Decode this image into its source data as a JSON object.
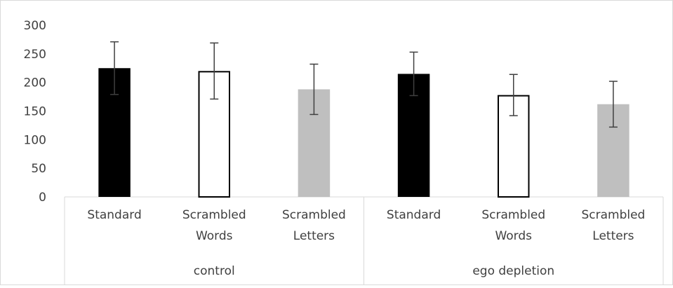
{
  "chart_data": {
    "type": "bar",
    "title": "",
    "xlabel": "",
    "ylabel": "",
    "ylim": [
      0,
      300
    ],
    "yticks": [
      0,
      50,
      100,
      150,
      200,
      250,
      300
    ],
    "grid": false,
    "legend": "none",
    "groups": [
      {
        "name": "control",
        "bars": [
          {
            "category": [
              "Standard"
            ],
            "value": 225,
            "error": 46,
            "style": "solid",
            "color": "#000000"
          },
          {
            "category": [
              "Scrambled",
              "Words"
            ],
            "value": 220,
            "error": 49,
            "style": "outline",
            "color": "#ffffff"
          },
          {
            "category": [
              "Scrambled",
              "Letters"
            ],
            "value": 188,
            "error": 44,
            "style": "solid",
            "color": "#bfbfbf"
          }
        ]
      },
      {
        "name": "ego depletion",
        "bars": [
          {
            "category": [
              "Standard"
            ],
            "value": 215,
            "error": 38,
            "style": "solid",
            "color": "#000000"
          },
          {
            "category": [
              "Scrambled",
              "Words"
            ],
            "value": 178,
            "error": 36,
            "style": "outline",
            "color": "#ffffff"
          },
          {
            "category": [
              "Scrambled",
              "Letters"
            ],
            "value": 162,
            "error": 40,
            "style": "solid",
            "color": "#bfbfbf"
          }
        ]
      }
    ],
    "axis_color": "#d9d9d9",
    "error_bar_color": "#404040"
  }
}
